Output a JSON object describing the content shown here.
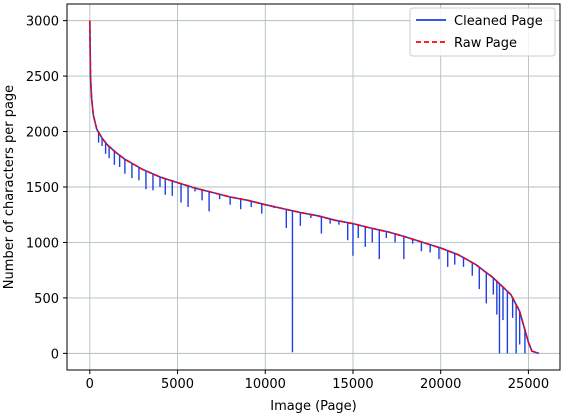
{
  "chart_data": {
    "type": "line",
    "title": "",
    "xlabel": "Image (Page)",
    "ylabel": "Number of characters per page",
    "xlim": [
      -1300,
      26800
    ],
    "ylim": [
      -150,
      3150
    ],
    "xticks": [
      0,
      5000,
      10000,
      15000,
      20000,
      25000
    ],
    "yticks": [
      0,
      500,
      1000,
      1500,
      2000,
      2500,
      3000
    ],
    "grid": true,
    "legend_position": "top-right",
    "series": [
      {
        "name": "Cleaned Page",
        "color": "#1f3fe0",
        "style": "solid",
        "points": [
          [
            0,
            3000
          ],
          [
            40,
            2500
          ],
          [
            100,
            2300
          ],
          [
            200,
            2150
          ],
          [
            400,
            2020
          ],
          [
            700,
            1940
          ],
          [
            1000,
            1880
          ],
          [
            1500,
            1810
          ],
          [
            2000,
            1750
          ],
          [
            3000,
            1660
          ],
          [
            4000,
            1590
          ],
          [
            5000,
            1540
          ],
          [
            6000,
            1490
          ],
          [
            7000,
            1450
          ],
          [
            8000,
            1410
          ],
          [
            9000,
            1380
          ],
          [
            10000,
            1340
          ],
          [
            11000,
            1305
          ],
          [
            12000,
            1270
          ],
          [
            13000,
            1240
          ],
          [
            14000,
            1200
          ],
          [
            15000,
            1170
          ],
          [
            16000,
            1130
          ],
          [
            17000,
            1095
          ],
          [
            18000,
            1050
          ],
          [
            19000,
            1000
          ],
          [
            20000,
            950
          ],
          [
            21000,
            890
          ],
          [
            22000,
            800
          ],
          [
            23000,
            680
          ],
          [
            24000,
            530
          ],
          [
            24500,
            380
          ],
          [
            25000,
            100
          ],
          [
            25200,
            20
          ],
          [
            25600,
            0
          ]
        ],
        "dips": [
          [
            500,
            1900
          ],
          [
            700,
            1870
          ],
          [
            900,
            1800
          ],
          [
            1100,
            1760
          ],
          [
            1400,
            1700
          ],
          [
            1700,
            1680
          ],
          [
            2000,
            1620
          ],
          [
            2400,
            1580
          ],
          [
            2800,
            1560
          ],
          [
            3200,
            1480
          ],
          [
            3600,
            1470
          ],
          [
            4000,
            1500
          ],
          [
            4300,
            1430
          ],
          [
            4700,
            1420
          ],
          [
            5200,
            1360
          ],
          [
            5600,
            1320
          ],
          [
            6000,
            1460
          ],
          [
            6400,
            1380
          ],
          [
            6800,
            1280
          ],
          [
            7400,
            1390
          ],
          [
            8000,
            1340
          ],
          [
            8600,
            1300
          ],
          [
            9200,
            1320
          ],
          [
            9800,
            1260
          ],
          [
            10500,
            1310
          ],
          [
            11200,
            1130
          ],
          [
            11550,
            10
          ],
          [
            12000,
            1150
          ],
          [
            12600,
            1220
          ],
          [
            13200,
            1080
          ],
          [
            13700,
            1170
          ],
          [
            14200,
            1160
          ],
          [
            14700,
            1020
          ],
          [
            15000,
            880
          ],
          [
            15300,
            1040
          ],
          [
            15700,
            960
          ],
          [
            16100,
            1000
          ],
          [
            16500,
            850
          ],
          [
            16900,
            1040
          ],
          [
            17400,
            1000
          ],
          [
            17900,
            850
          ],
          [
            18400,
            990
          ],
          [
            18900,
            920
          ],
          [
            19400,
            910
          ],
          [
            19900,
            850
          ],
          [
            20400,
            780
          ],
          [
            20800,
            800
          ],
          [
            21300,
            780
          ],
          [
            21800,
            700
          ],
          [
            22200,
            580
          ],
          [
            22600,
            450
          ],
          [
            23000,
            530
          ],
          [
            23200,
            350
          ],
          [
            23350,
            0
          ],
          [
            23550,
            300
          ],
          [
            23800,
            0
          ],
          [
            24100,
            320
          ],
          [
            24300,
            0
          ],
          [
            24500,
            80
          ],
          [
            24800,
            0
          ]
        ]
      },
      {
        "name": "Raw Page",
        "color": "#ff0000",
        "style": "dashed",
        "points": [
          [
            0,
            3000
          ],
          [
            40,
            2500
          ],
          [
            100,
            2300
          ],
          [
            200,
            2150
          ],
          [
            400,
            2020
          ],
          [
            700,
            1940
          ],
          [
            1000,
            1880
          ],
          [
            1500,
            1810
          ],
          [
            2000,
            1750
          ],
          [
            3000,
            1660
          ],
          [
            4000,
            1590
          ],
          [
            5000,
            1540
          ],
          [
            6000,
            1490
          ],
          [
            7000,
            1450
          ],
          [
            8000,
            1410
          ],
          [
            9000,
            1380
          ],
          [
            10000,
            1340
          ],
          [
            11000,
            1305
          ],
          [
            12000,
            1270
          ],
          [
            13000,
            1240
          ],
          [
            14000,
            1200
          ],
          [
            15000,
            1170
          ],
          [
            16000,
            1130
          ],
          [
            17000,
            1095
          ],
          [
            18000,
            1050
          ],
          [
            19000,
            1000
          ],
          [
            20000,
            950
          ],
          [
            21000,
            890
          ],
          [
            22000,
            800
          ],
          [
            23000,
            680
          ],
          [
            24000,
            530
          ],
          [
            24500,
            380
          ],
          [
            25000,
            100
          ],
          [
            25200,
            20
          ],
          [
            25600,
            0
          ]
        ]
      }
    ]
  }
}
